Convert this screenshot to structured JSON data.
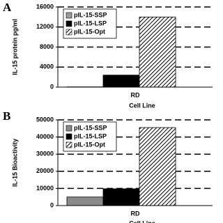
{
  "chart_data": [
    {
      "type": "bar",
      "panel": "A",
      "y_label": "IL-15 protein pg/ml",
      "x_label": "Cell Line",
      "categories": [
        "RD"
      ],
      "series": [
        {
          "name": "pIL-15-SSP",
          "color": "#9a9a9a",
          "values": [
            50
          ]
        },
        {
          "name": "pIL-15-LSP",
          "color": "#000000",
          "values": [
            2400
          ]
        },
        {
          "name": "pIL-15-Opt",
          "color": "#000000",
          "pattern": "diagonal",
          "values": [
            14000
          ]
        }
      ],
      "ylim": [
        0,
        16000
      ],
      "yticks": [
        0,
        4000,
        8000,
        12000,
        16000
      ],
      "grid": true
    },
    {
      "type": "bar",
      "panel": "B",
      "y_label": "IL-15 Bioactivity",
      "x_label": "Cell Line",
      "categories": [
        "RD"
      ],
      "series": [
        {
          "name": "pIL-15-SSP",
          "color": "#8a8a8a",
          "values": [
            5000
          ]
        },
        {
          "name": "pIL-15-LSP",
          "color": "#000000",
          "values": [
            9800
          ]
        },
        {
          "name": "pIL-15-Opt",
          "color": "#000000",
          "pattern": "diagonal",
          "values": [
            45500
          ]
        }
      ],
      "ylim": [
        0,
        50000
      ],
      "yticks": [
        0,
        10000,
        20000,
        30000,
        40000,
        50000
      ],
      "grid": true
    }
  ]
}
